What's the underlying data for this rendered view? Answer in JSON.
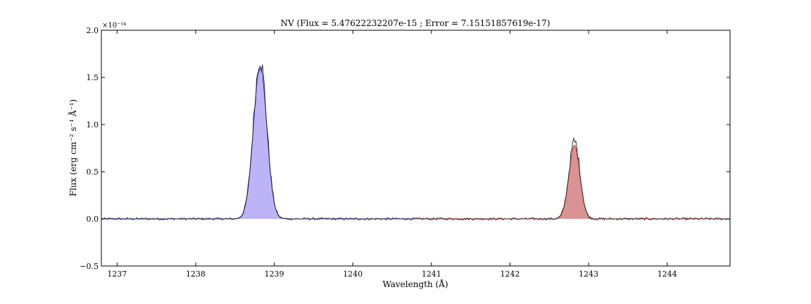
{
  "chart_data": {
    "type": "line",
    "title": "NV (Flux = 5.47622232207e-15 ; Error = 7.15151857619e-17)",
    "xlabel": "Wavelength (Å)",
    "ylabel": "Flux (erg cm⁻² s⁻¹ Å⁻¹)",
    "y_scale_text": "×10⁻¹⁴",
    "xlim": [
      1236.8,
      1244.8
    ],
    "ylim": [
      -0.5,
      2.0
    ],
    "y_unit_multiplier": 1e-14,
    "x_ticks": [
      1237,
      1238,
      1239,
      1240,
      1241,
      1242,
      1243,
      1244
    ],
    "x_tick_labels": [
      "1237",
      "1238",
      "1239",
      "1240",
      "1241",
      "1242",
      "1243",
      "1244"
    ],
    "y_ticks": [
      -0.5,
      0.0,
      0.5,
      1.0,
      1.5,
      2.0
    ],
    "y_tick_labels": [
      "−0.5",
      "0.0",
      "0.5",
      "1.0",
      "1.5",
      "2.0"
    ],
    "grid": false,
    "legend": "none",
    "series": [
      {
        "role": "observed-flux",
        "color": "#222222",
        "x_range": [
          1236.8,
          1244.8
        ],
        "noise_amplitude": 0.012,
        "peaks": [
          {
            "center": 1238.82,
            "amplitude": 1.68,
            "sigma": 0.085
          },
          {
            "center": 1242.82,
            "amplitude": 0.82,
            "sigma": 0.07
          }
        ]
      },
      {
        "role": "fitted-line-1",
        "color": "#3333cc",
        "fill": "#b8b0f5",
        "x_range": [
          1236.8,
          1240.8
        ],
        "peak": {
          "center": 1238.82,
          "amplitude": 1.62,
          "sigma": 0.085
        }
      },
      {
        "role": "fitted-line-2",
        "color": "#cc3333",
        "fill": "#d98c8c",
        "x_range": [
          1240.8,
          1244.8
        ],
        "peak": {
          "center": 1242.82,
          "amplitude": 0.78,
          "sigma": 0.07
        }
      }
    ]
  }
}
